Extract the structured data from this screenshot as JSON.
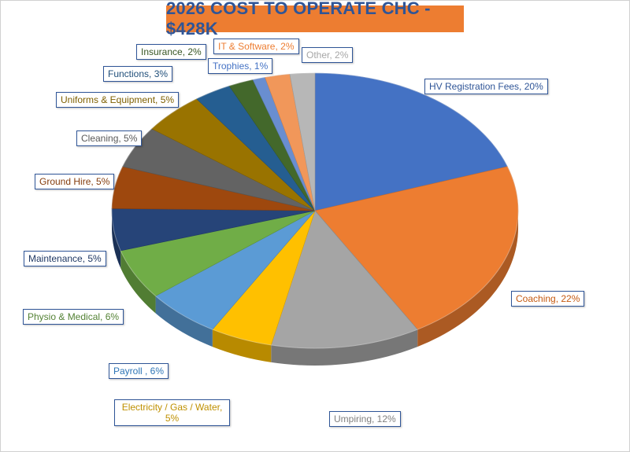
{
  "chart_data": {
    "type": "pie",
    "title": "2026 COST TO OPERATE CHC - $428K",
    "slices": [
      {
        "label": "HV Registration Fees",
        "value": 20,
        "display": "HV Registration Fees, 20%",
        "color": "#4472c4"
      },
      {
        "label": "Coaching",
        "value": 22,
        "display": "Coaching, 22%",
        "color": "#ed7d31"
      },
      {
        "label": "Umpiring",
        "value": 12,
        "display": "Umpiring, 12%",
        "color": "#a5a5a5"
      },
      {
        "label": "Electricity / Gas / Water",
        "value": 5,
        "display": "Electricity / Gas / Water,\n5%",
        "color": "#ffc000"
      },
      {
        "label": "Payroll",
        "value": 6,
        "display": "Payroll , 6%",
        "color": "#5b9bd5"
      },
      {
        "label": "Physio & Medical",
        "value": 6,
        "display": "Physio & Medical, 6%",
        "color": "#70ad47"
      },
      {
        "label": "Maintenance",
        "value": 5,
        "display": "Maintenance, 5%",
        "color": "#264478"
      },
      {
        "label": "Ground Hire",
        "value": 5,
        "display": "Ground Hire, 5%",
        "color": "#9e480e"
      },
      {
        "label": "Cleaning",
        "value": 5,
        "display": "Cleaning, 5%",
        "color": "#636363"
      },
      {
        "label": "Uniforms & Equipment",
        "value": 5,
        "display": "Uniforms & Equipment, 5%",
        "color": "#997300"
      },
      {
        "label": "Functions",
        "value": 3,
        "display": "Functions, 3%",
        "color": "#255e91"
      },
      {
        "label": "Insurance",
        "value": 2,
        "display": "Insurance, 2%",
        "color": "#43682b"
      },
      {
        "label": "Trophies",
        "value": 1,
        "display": "Trophies, 1%",
        "color": "#698ed0"
      },
      {
        "label": "IT & Software",
        "value": 2,
        "display": "IT & Software, 2%",
        "color": "#f1975a"
      },
      {
        "label": "Other",
        "value": 2,
        "display": "Other, 2%",
        "color": "#b7b7b7"
      }
    ],
    "label_colors": {
      "HV Registration Fees": "#2f5597",
      "Coaching": "#c55a11",
      "Umpiring": "#7f7f7f",
      "Electricity / Gas / Water": "#bf9000",
      "Payroll": "#2e75b6",
      "Physio & Medical": "#548235",
      "Maintenance": "#1f3864",
      "Ground Hire": "#843c0c",
      "Cleaning": "#595959",
      "Uniforms & Equipment": "#7f6000",
      "Functions": "#1f4e79",
      "Insurance": "#375623",
      "Trophies": "#4472c4",
      "IT & Software": "#ed7d31",
      "Other": "#a6a6a6"
    }
  }
}
